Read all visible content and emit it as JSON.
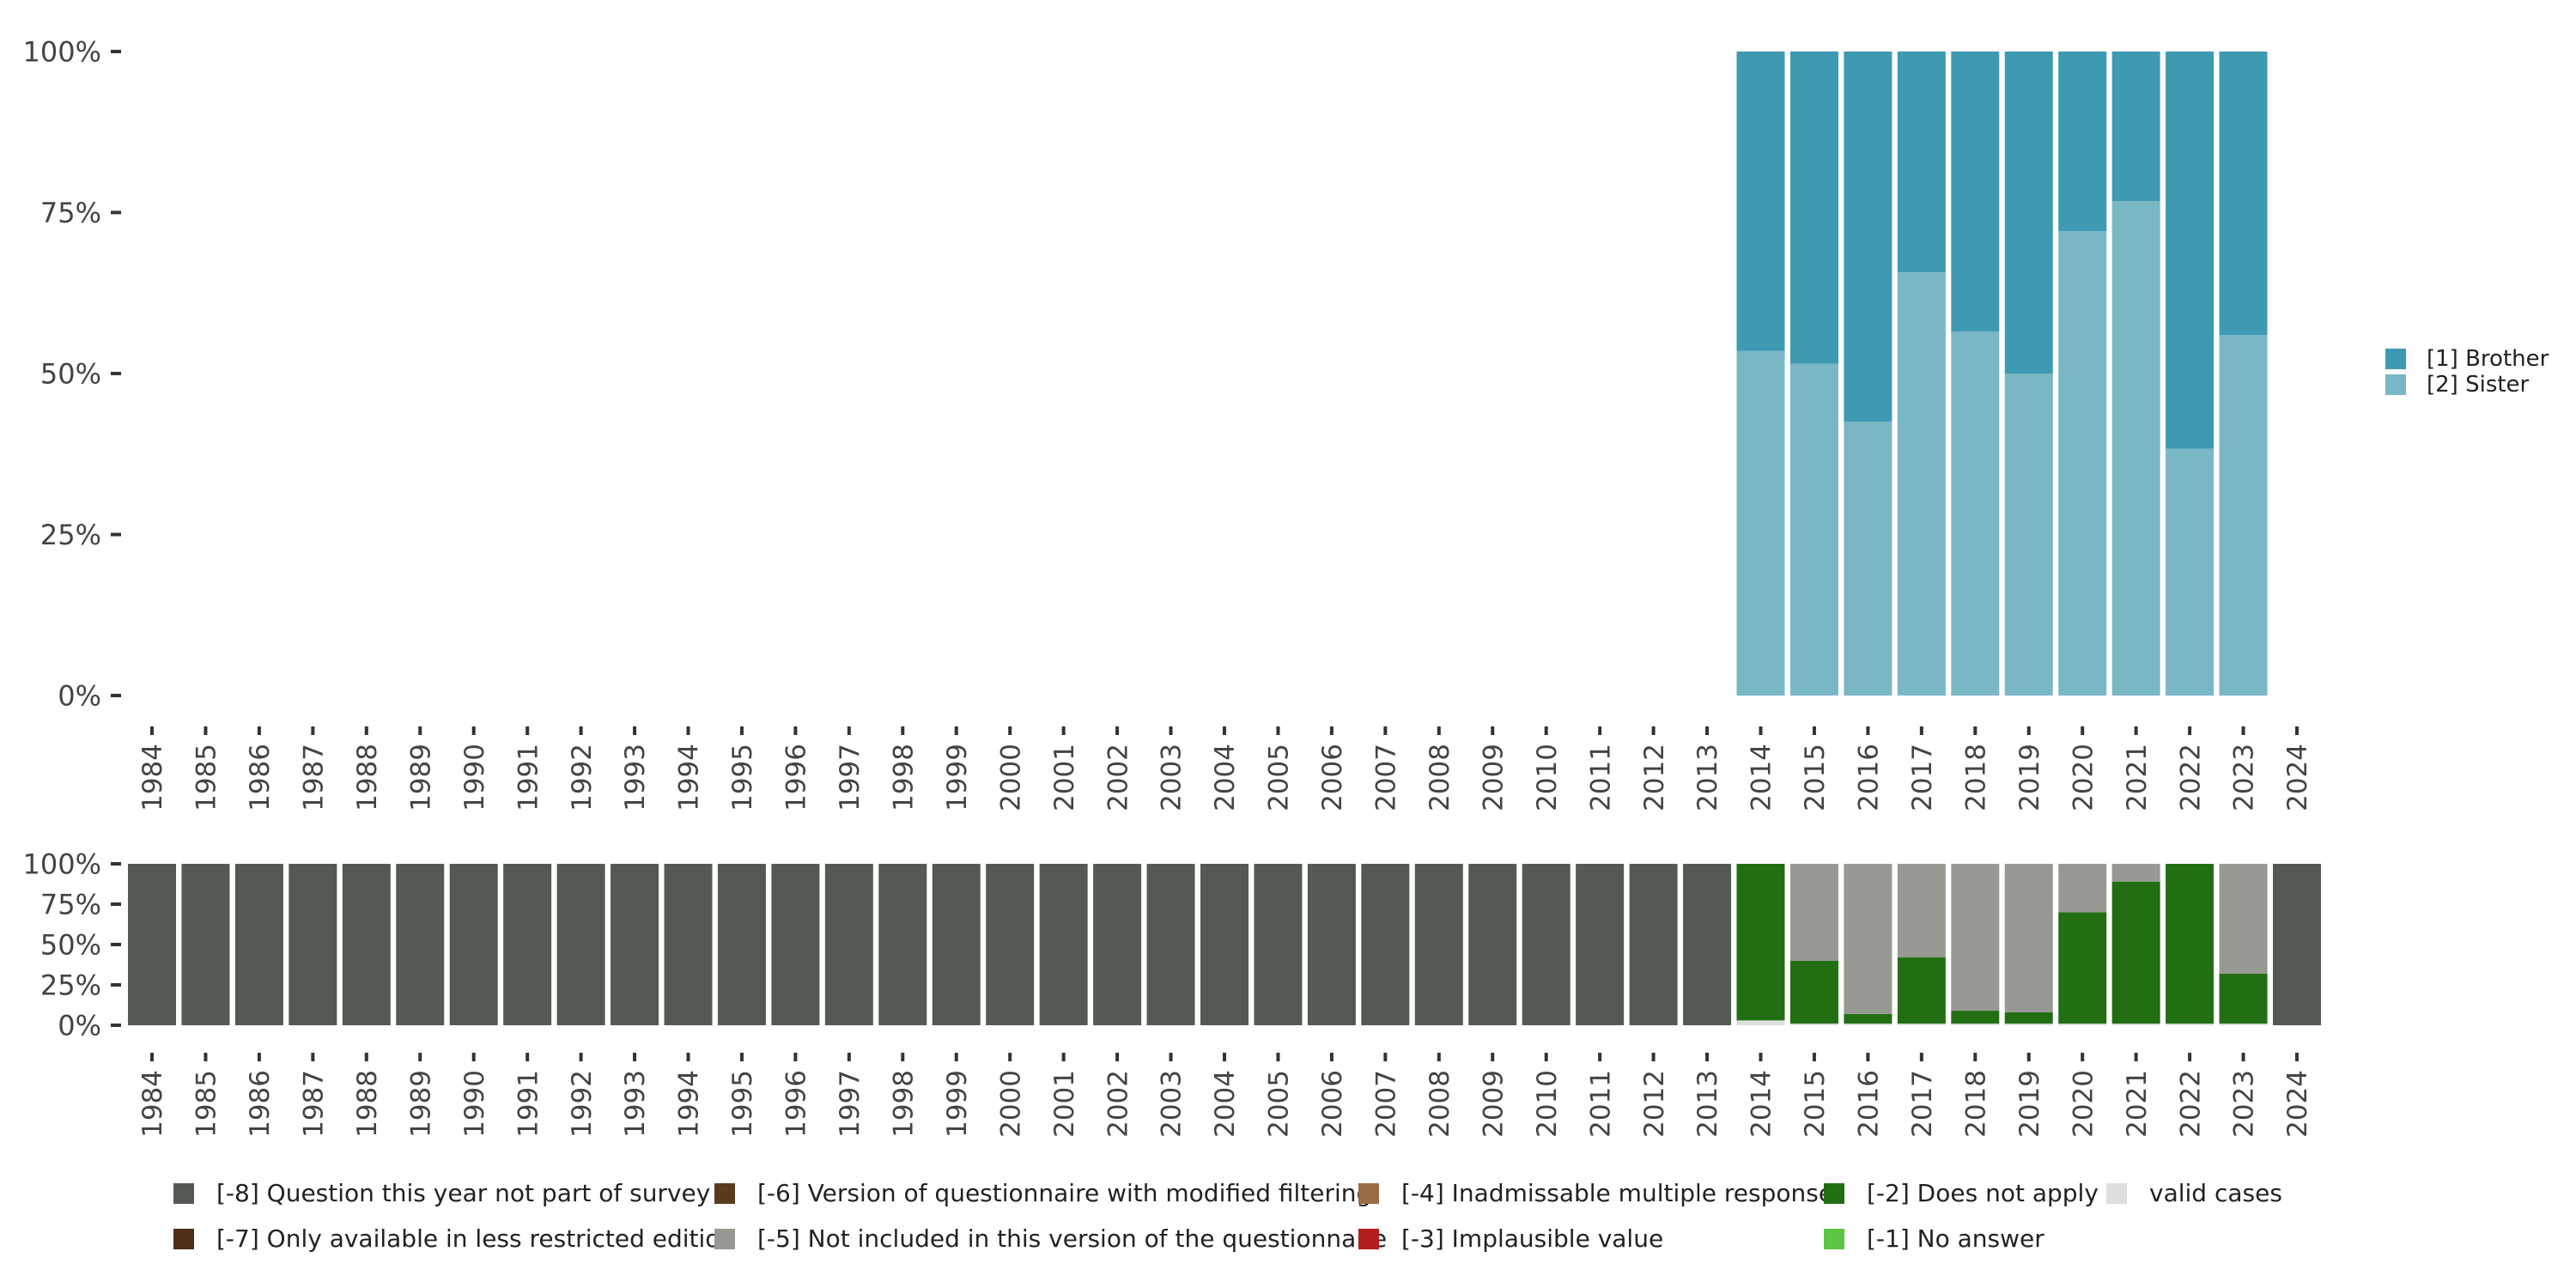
{
  "chart_data": [
    {
      "type": "bar",
      "stacked": true,
      "categories": [
        "1984",
        "1985",
        "1986",
        "1987",
        "1988",
        "1989",
        "1990",
        "1991",
        "1992",
        "1993",
        "1994",
        "1995",
        "1996",
        "1997",
        "1998",
        "1999",
        "2000",
        "2001",
        "2002",
        "2003",
        "2004",
        "2005",
        "2006",
        "2007",
        "2008",
        "2009",
        "2010",
        "2011",
        "2012",
        "2013",
        "2014",
        "2015",
        "2016",
        "2017",
        "2018",
        "2019",
        "2020",
        "2021",
        "2022",
        "2023",
        "2024"
      ],
      "ylim": [
        0,
        1
      ],
      "yticks": [
        "0%",
        "25%",
        "50%",
        "75%",
        "100%"
      ],
      "ytick_values": [
        0,
        0.25,
        0.5,
        0.75,
        1
      ],
      "legend_position": "right",
      "series": [
        {
          "name": "[2] Sister",
          "color": "#79b7c5",
          "values": [
            null,
            null,
            null,
            null,
            null,
            null,
            null,
            null,
            null,
            null,
            null,
            null,
            null,
            null,
            null,
            null,
            null,
            null,
            null,
            null,
            null,
            null,
            null,
            null,
            null,
            null,
            null,
            null,
            null,
            null,
            0.535,
            0.515,
            0.425,
            0.657,
            0.565,
            0.5,
            0.721,
            0.768,
            0.383,
            0.56,
            null
          ]
        },
        {
          "name": "[1] Brother",
          "color": "#3e9ab3",
          "values": [
            null,
            null,
            null,
            null,
            null,
            null,
            null,
            null,
            null,
            null,
            null,
            null,
            null,
            null,
            null,
            null,
            null,
            null,
            null,
            null,
            null,
            null,
            null,
            null,
            null,
            null,
            null,
            null,
            null,
            null,
            0.465,
            0.485,
            0.575,
            0.343,
            0.435,
            0.5,
            0.279,
            0.232,
            0.617,
            0.44,
            null
          ]
        }
      ]
    },
    {
      "type": "bar",
      "stacked": true,
      "categories": [
        "1984",
        "1985",
        "1986",
        "1987",
        "1988",
        "1989",
        "1990",
        "1991",
        "1992",
        "1993",
        "1994",
        "1995",
        "1996",
        "1997",
        "1998",
        "1999",
        "2000",
        "2001",
        "2002",
        "2003",
        "2004",
        "2005",
        "2006",
        "2007",
        "2008",
        "2009",
        "2010",
        "2011",
        "2012",
        "2013",
        "2014",
        "2015",
        "2016",
        "2017",
        "2018",
        "2019",
        "2020",
        "2021",
        "2022",
        "2023",
        "2024"
      ],
      "ylim": [
        0,
        1
      ],
      "yticks": [
        "0%",
        "25%",
        "50%",
        "75%",
        "100%"
      ],
      "ytick_values": [
        0,
        0.25,
        0.5,
        0.75,
        1
      ],
      "legend_position": "bottom",
      "series": [
        {
          "name": "valid cases",
          "color": "#dcdfdb",
          "values": [
            0,
            0,
            0,
            0,
            0,
            0,
            0,
            0,
            0,
            0,
            0,
            0,
            0,
            0,
            0,
            0,
            0,
            0,
            0,
            0,
            0,
            0,
            0,
            0,
            0,
            0,
            0,
            0,
            0,
            0,
            0.03,
            0.01,
            0.01,
            0.01,
            0.01,
            0.01,
            0.01,
            0.01,
            0.01,
            0.01,
            0
          ]
        },
        {
          "name": "[-2] Does not apply",
          "color": "#226e13",
          "values": [
            0,
            0,
            0,
            0,
            0,
            0,
            0,
            0,
            0,
            0,
            0,
            0,
            0,
            0,
            0,
            0,
            0,
            0,
            0,
            0,
            0,
            0,
            0,
            0,
            0,
            0,
            0,
            0,
            0,
            0,
            0.97,
            0.39,
            0.06,
            0.41,
            0.08,
            0.07,
            0.69,
            0.88,
            0.99,
            0.31,
            0
          ]
        },
        {
          "name": "[-5] Not included in this version of the questionnaire",
          "color": "#979a92",
          "values": [
            0,
            0,
            0,
            0,
            0,
            0,
            0,
            0,
            0,
            0,
            0,
            0,
            0,
            0,
            0,
            0,
            0,
            0,
            0,
            0,
            0,
            0,
            0,
            0,
            0,
            0,
            0,
            0,
            0,
            0,
            0,
            0.6,
            0.93,
            0.58,
            0.91,
            0.92,
            0.3,
            0.11,
            0,
            0.68,
            0
          ]
        },
        {
          "name": "[-8] Question this year not part of survey",
          "color": "#545a53",
          "values": [
            1,
            1,
            1,
            1,
            1,
            1,
            1,
            1,
            1,
            1,
            1,
            1,
            1,
            1,
            1,
            1,
            1,
            1,
            1,
            1,
            1,
            1,
            1,
            1,
            1,
            1,
            1,
            1,
            1,
            1,
            0,
            0,
            0,
            0,
            0,
            0,
            0,
            0,
            0,
            0,
            1
          ]
        }
      ]
    }
  ],
  "top_legend": [
    {
      "label": "[1] Brother",
      "color": "#3e9ab3"
    },
    {
      "label": "[2] Sister",
      "color": "#79b7c5"
    }
  ],
  "bottom_legend": [
    {
      "label": "[-8] Question this year not part of survey",
      "color": "#545a53"
    },
    {
      "label": "[-7] Only available in less restricted edition",
      "color": "#4f2e16"
    },
    {
      "label": "[-6] Version of questionnaire with modified filtering",
      "color": "#5a3a1c"
    },
    {
      "label": "[-5] Not included in this version of the questionnaire",
      "color": "#979a92"
    },
    {
      "label": "[-4] Inadmissable multiple response",
      "color": "#9a6b45"
    },
    {
      "label": "[-3] Implausible value",
      "color": "#b51e1e"
    },
    {
      "label": "[-2] Does not apply",
      "color": "#226e13"
    },
    {
      "label": "[-1] No answer",
      "color": "#5cc544"
    },
    {
      "label": "valid cases",
      "color": "#dcdfdb"
    }
  ]
}
